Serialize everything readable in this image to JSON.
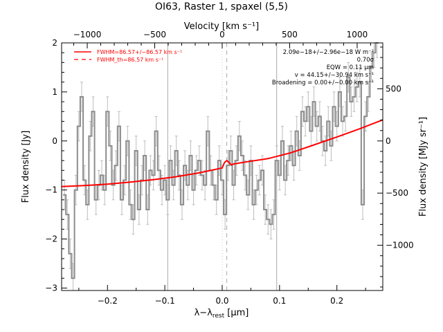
{
  "chart_data": {
    "type": "line",
    "title": "OI63, Raster 1, spaxel (5,5)",
    "xlabel": "λ−λ_rest [μm]",
    "xlabel_main": "λ−λ",
    "xlabel_sub": "rest",
    "xlabel_unit": " [μm]",
    "ylabel": "Flux density [Jy]",
    "x2label": "Velocity [km s⁻¹]",
    "y2label": "Flux density [MJy sr⁻¹]",
    "xlim": [
      -0.28,
      0.28
    ],
    "ylim": [
      -3.05,
      2.0
    ],
    "x_ticks": [
      -0.2,
      -0.1,
      0.0,
      0.1,
      0.2
    ],
    "x_tick_labels": [
      "−0.2",
      "−0.1",
      "0.0",
      "0.1",
      "0.2"
    ],
    "y_ticks": [
      -3,
      -2,
      -1,
      0,
      1,
      2
    ],
    "y_tick_labels": [
      "−3",
      "−2",
      "−1",
      "0",
      "1",
      "2"
    ],
    "x2_ticks": [
      -1000,
      -500,
      0,
      500,
      1000
    ],
    "x2_tick_labels": [
      "−1000",
      "−500",
      "0",
      "500",
      "1000"
    ],
    "y2_ticks": [
      -1000,
      -500,
      0,
      500
    ],
    "y2_tick_labels": [
      "−1000",
      "−500",
      "0",
      "500"
    ],
    "vertical_lines": {
      "solid": [
        -0.095,
        0.095
      ],
      "dashed": [
        0.008
      ],
      "dotted": [
        0.0
      ]
    },
    "legend": {
      "position": "top-left",
      "entries": [
        {
          "label": "FWHM=86.57+/−86.57 km s⁻¹",
          "style": "solid"
        },
        {
          "label": "FWHM_th=86.57 km s⁻¹",
          "style": "dashed"
        }
      ]
    },
    "annotations": [
      "2.09e−18+/−2.96e−18 W m⁻²",
      "0.70σ",
      "EQW = 0.11 μm",
      "v = 44.15+/−30.94 km s⁻¹",
      "Broadening = 0.00+/−0.00 km s⁻¹"
    ],
    "series": [
      {
        "style": "step",
        "x": [
          -0.275,
          -0.27,
          -0.265,
          -0.26,
          -0.255,
          -0.25,
          -0.245,
          -0.24,
          -0.235,
          -0.23,
          -0.225,
          -0.22,
          -0.215,
          -0.21,
          -0.205,
          -0.2,
          -0.195,
          -0.19,
          -0.185,
          -0.18,
          -0.175,
          -0.17,
          -0.165,
          -0.16,
          -0.155,
          -0.15,
          -0.145,
          -0.14,
          -0.135,
          -0.13,
          -0.125,
          -0.12,
          -0.115,
          -0.11,
          -0.105,
          -0.1,
          -0.095,
          -0.09,
          -0.085,
          -0.08,
          -0.075,
          -0.07,
          -0.065,
          -0.06,
          -0.055,
          -0.05,
          -0.045,
          -0.04,
          -0.035,
          -0.03,
          -0.025,
          -0.02,
          -0.015,
          -0.01,
          -0.005,
          0.0,
          0.005,
          0.01,
          0.015,
          0.02,
          0.025,
          0.03,
          0.035,
          0.04,
          0.045,
          0.05,
          0.055,
          0.06,
          0.065,
          0.07,
          0.075,
          0.08,
          0.085,
          0.09,
          0.095,
          0.1,
          0.105,
          0.11,
          0.115,
          0.12,
          0.125,
          0.13,
          0.135,
          0.14,
          0.145,
          0.15,
          0.155,
          0.16,
          0.165,
          0.17,
          0.175,
          0.18,
          0.185,
          0.19,
          0.195,
          0.2,
          0.205,
          0.21,
          0.215,
          0.22,
          0.225,
          0.23,
          0.235,
          0.24,
          0.245,
          0.25,
          0.255,
          0.26,
          0.265,
          0.27
        ],
        "y": [
          -1.1,
          -1.5,
          -2.3,
          -2.8,
          -1.0,
          0.3,
          0.9,
          -0.8,
          -1.3,
          0.1,
          0.6,
          -1.2,
          -0.9,
          -0.7,
          -1.0,
          0.6,
          -0.1,
          -0.9,
          -0.5,
          0.3,
          -1.2,
          -0.8,
          0.0,
          -1.3,
          -1.6,
          -0.2,
          -1.4,
          -0.8,
          -0.3,
          -1.4,
          -0.6,
          -0.7,
          0.2,
          -0.6,
          -1.0,
          -0.8,
          -1.2,
          -0.4,
          -0.9,
          -0.2,
          -0.7,
          -1.3,
          -0.5,
          -0.9,
          -0.3,
          -1.0,
          -0.6,
          -0.4,
          -0.7,
          -0.9,
          0.2,
          -0.6,
          -0.9,
          -1.2,
          -0.4,
          -0.8,
          -1.5,
          -0.5,
          -0.2,
          -0.9,
          -0.4,
          0.1,
          -0.3,
          -0.7,
          -1.1,
          -0.4,
          -1.3,
          -1.0,
          -0.8,
          -0.6,
          -1.4,
          -1.6,
          -1.7,
          -1.5,
          -0.4,
          -0.7,
          0.0,
          -0.8,
          -0.4,
          -0.1,
          -0.5,
          0.2,
          -0.3,
          0.6,
          0.4,
          0.7,
          0.2,
          0.8,
          0.3,
          0.5,
          0.0,
          -0.2,
          0.4,
          -0.1,
          0.7,
          0.3,
          1.0,
          0.4,
          0.5,
          1.3,
          0.8,
          0.9,
          1.1,
          1.2,
          -1.3,
          0.5,
          0.9,
          1.5,
          1.8,
          2.0
        ],
        "yerr": 0.3
      },
      {
        "style": "smooth",
        "x": [
          -0.28,
          -0.24,
          -0.2,
          -0.16,
          -0.12,
          -0.08,
          -0.04,
          0.0,
          0.004,
          0.008,
          0.012,
          0.016,
          0.02,
          0.04,
          0.08,
          0.12,
          0.16,
          0.2,
          0.24,
          0.28
        ],
        "y": [
          -0.93,
          -0.91,
          -0.88,
          -0.84,
          -0.79,
          -0.73,
          -0.65,
          -0.55,
          -0.44,
          -0.4,
          -0.44,
          -0.49,
          -0.47,
          -0.43,
          -0.36,
          -0.24,
          -0.08,
          0.08,
          0.25,
          0.43
        ]
      }
    ]
  }
}
